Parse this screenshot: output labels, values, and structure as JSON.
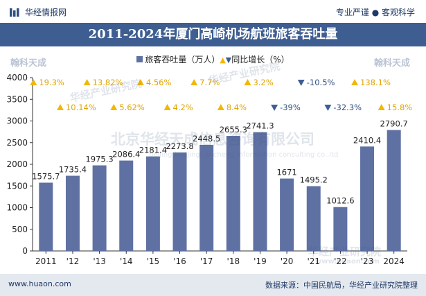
{
  "header": {
    "brand": "华经情报网",
    "slogan_left": "专业严谨",
    "slogan_right": "客观科学"
  },
  "chart_data": {
    "type": "bar",
    "title": "2011-2024年厦门高崎机场航班旅客吞吐量",
    "legend": {
      "bar_series": "旅客吞吐量（万人）",
      "line_series": "同比增长（%）"
    },
    "categories": [
      "2011",
      "'12",
      "'13",
      "'14",
      "'15",
      "'16",
      "'17",
      "'18",
      "'19",
      "'20",
      "'21",
      "'22",
      "'23",
      "2024"
    ],
    "values": [
      1575.7,
      1735.4,
      1975.3,
      2086.4,
      2181.4,
      2273.8,
      2448.5,
      2655.3,
      2741.3,
      1671,
      1495.2,
      1012.6,
      2410.4,
      2790.7
    ],
    "value_labels": [
      "1575.7",
      "1735.4",
      "1975.3",
      "2086.4",
      "2181.4",
      "2273.8",
      "2448.5",
      "2655.3",
      "2741.3",
      "1671",
      "1495.2",
      "1012.6",
      "2410.4",
      "2790.7"
    ],
    "growth": [
      19.3,
      10.14,
      13.82,
      5.62,
      4.56,
      4.2,
      7.7,
      8.4,
      3.2,
      -39,
      -10.5,
      -32.3,
      138.1,
      15.8
    ],
    "growth_labels": [
      "19.3%",
      "10.14%",
      "13.82%",
      "5.62%",
      "4.56%",
      "4.2%",
      "7.7%",
      "8.4%",
      "3.2%",
      "-39%",
      "-10.5%",
      "-32.3%",
      "138.1%",
      "15.8%"
    ],
    "ylim": [
      0,
      4000
    ],
    "yticks": [
      "0",
      "500",
      "1000",
      "1500",
      "2000",
      "2500",
      "3000",
      "3500",
      "4000"
    ],
    "grid": false,
    "colors": {
      "bar": "#5f71a3",
      "up": "#f2b705",
      "down": "#3e5e92",
      "up_text": "#e0a400",
      "down_text": "#2f4f80"
    }
  },
  "watermarks": {
    "company_cn": "北京华经天成信息咨询有限公司",
    "company_en": "beijing huajingtiancheng information consulting co.,ltd",
    "institute": "华经产业研究院",
    "site": "www.huaon.com",
    "corner": "翰科天成"
  },
  "footer": {
    "url": "www.huaon.com",
    "source": "数据来源：中国民航局，华经产业研究院整理"
  }
}
